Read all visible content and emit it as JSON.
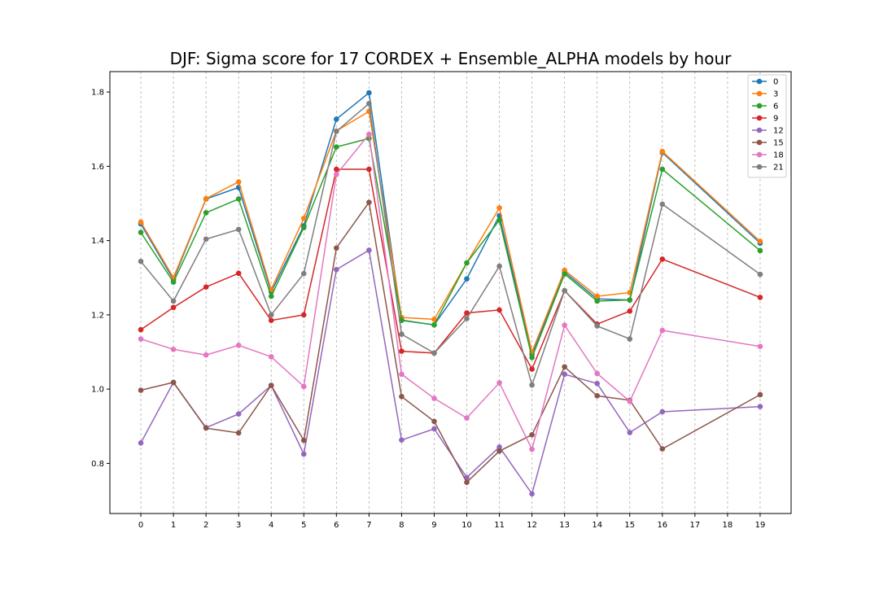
{
  "chart_data": {
    "type": "line",
    "title": "DJF: Sigma score for 17 CORDEX + Ensemble_ALPHA models by hour",
    "xlabel": "",
    "ylabel": "",
    "x_ticks": [
      0,
      1,
      2,
      3,
      4,
      5,
      6,
      7,
      8,
      9,
      10,
      11,
      12,
      13,
      14,
      15,
      16,
      17,
      18,
      19
    ],
    "x_tick_labels": [
      "0",
      "1",
      "2",
      "3",
      "4",
      "5",
      "6",
      "7",
      "8",
      "9",
      "10",
      "11",
      "12",
      "13",
      "14",
      "15",
      "16",
      "17",
      "18",
      "19"
    ],
    "y_ticks": [
      0.8,
      1.0,
      1.2,
      1.4,
      1.6,
      1.8
    ],
    "y_tick_labels": [
      "0.8",
      "1.0",
      "1.2",
      "1.4",
      "1.6",
      "1.8"
    ],
    "xlim": [
      -0.95,
      19.95
    ],
    "ylim": [
      0.665,
      1.855
    ],
    "grid": "vertical dashed",
    "legend_position": "top-right",
    "series": [
      {
        "name": "0",
        "color": "#1f77b4",
        "x": [
          0,
          1,
          2,
          3,
          4,
          5,
          6,
          7,
          8,
          9,
          10,
          11,
          12,
          13,
          14,
          15,
          16,
          19
        ],
        "values": [
          1.445,
          1.295,
          1.512,
          1.543,
          1.262,
          1.44,
          1.727,
          1.798,
          1.185,
          1.173,
          1.297,
          1.467,
          1.094,
          1.315,
          1.243,
          1.24,
          1.637,
          1.393
        ]
      },
      {
        "name": "3",
        "color": "#ff7f0e",
        "x": [
          0,
          1,
          2,
          3,
          4,
          5,
          6,
          7,
          8,
          9,
          10,
          11,
          12,
          13,
          14,
          15,
          16,
          19
        ],
        "values": [
          1.45,
          1.3,
          1.513,
          1.558,
          1.268,
          1.46,
          1.695,
          1.748,
          1.193,
          1.188,
          1.34,
          1.488,
          1.1,
          1.32,
          1.25,
          1.26,
          1.64,
          1.398
        ]
      },
      {
        "name": "6",
        "color": "#2ca02c",
        "x": [
          0,
          1,
          2,
          3,
          4,
          5,
          6,
          7,
          8,
          9,
          10,
          11,
          12,
          13,
          14,
          15,
          16,
          19
        ],
        "values": [
          1.422,
          1.288,
          1.475,
          1.512,
          1.25,
          1.435,
          1.652,
          1.675,
          1.186,
          1.173,
          1.34,
          1.455,
          1.085,
          1.31,
          1.237,
          1.24,
          1.592,
          1.373
        ]
      },
      {
        "name": "9",
        "color": "#d62728",
        "x": [
          0,
          1,
          2,
          3,
          4,
          5,
          6,
          7,
          8,
          9,
          10,
          11,
          12,
          13,
          14,
          15,
          16,
          19
        ],
        "values": [
          1.16,
          1.22,
          1.275,
          1.312,
          1.185,
          1.2,
          1.592,
          1.592,
          1.102,
          1.097,
          1.205,
          1.213,
          1.054,
          1.265,
          1.175,
          1.21,
          1.35,
          1.247
        ]
      },
      {
        "name": "12",
        "color": "#9467bd",
        "x": [
          0,
          1,
          2,
          3,
          4,
          5,
          6,
          7,
          8,
          9,
          10,
          11,
          12,
          13,
          14,
          15,
          16,
          19
        ],
        "values": [
          0.855,
          1.018,
          0.896,
          0.933,
          1.01,
          0.825,
          1.322,
          1.374,
          0.863,
          0.893,
          0.762,
          0.844,
          0.718,
          1.04,
          1.015,
          0.883,
          0.939,
          0.953
        ]
      },
      {
        "name": "15",
        "color": "#8c564b",
        "x": [
          0,
          1,
          2,
          3,
          4,
          5,
          6,
          7,
          8,
          9,
          10,
          11,
          12,
          13,
          14,
          15,
          16,
          19
        ],
        "values": [
          0.997,
          1.018,
          0.895,
          0.882,
          1.01,
          0.862,
          1.38,
          1.503,
          0.98,
          0.913,
          0.749,
          0.833,
          0.877,
          1.06,
          0.982,
          0.97,
          0.839,
          0.985
        ]
      },
      {
        "name": "18",
        "color": "#e377c2",
        "x": [
          0,
          1,
          2,
          3,
          4,
          5,
          6,
          7,
          8,
          9,
          10,
          11,
          12,
          13,
          14,
          15,
          16,
          19
        ],
        "values": [
          1.135,
          1.107,
          1.092,
          1.118,
          1.087,
          1.007,
          1.578,
          1.686,
          1.04,
          0.975,
          0.922,
          1.017,
          0.838,
          1.172,
          1.042,
          0.967,
          1.158,
          1.115
        ]
      },
      {
        "name": "21",
        "color": "#7f7f7f",
        "x": [
          0,
          1,
          2,
          3,
          4,
          5,
          6,
          7,
          8,
          9,
          10,
          11,
          12,
          13,
          14,
          15,
          16,
          19
        ],
        "values": [
          1.344,
          1.237,
          1.404,
          1.43,
          1.2,
          1.311,
          1.694,
          1.769,
          1.148,
          1.097,
          1.19,
          1.331,
          1.011,
          1.265,
          1.17,
          1.135,
          1.498,
          1.309
        ]
      }
    ]
  }
}
